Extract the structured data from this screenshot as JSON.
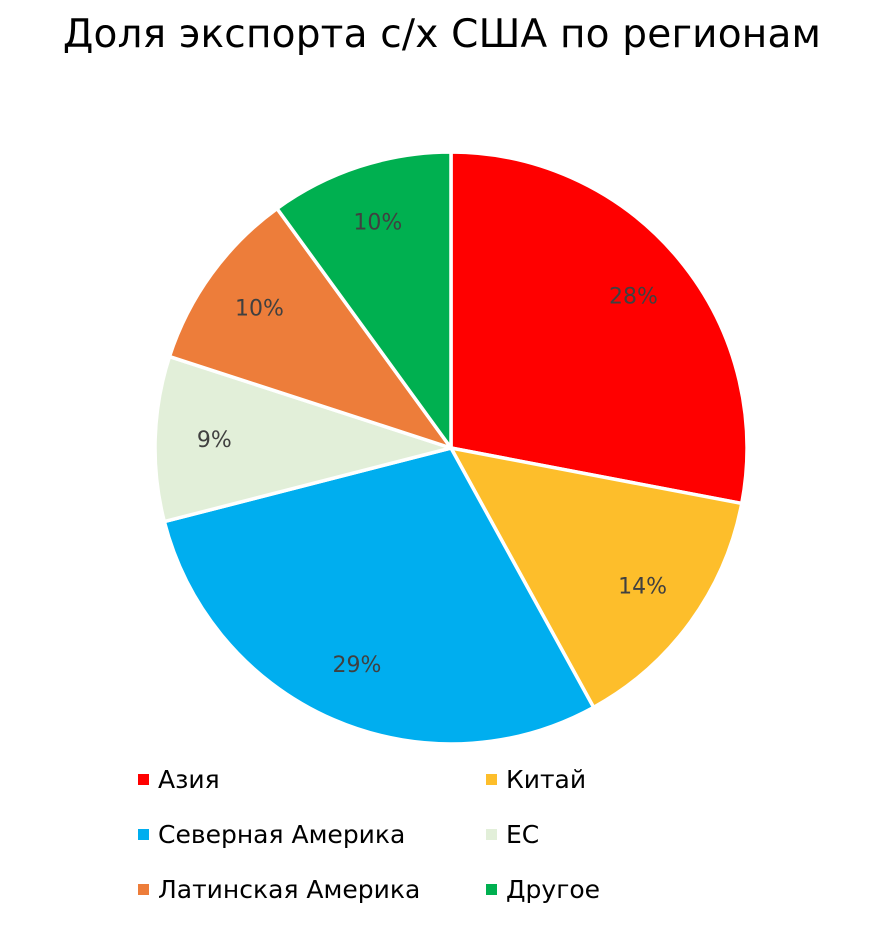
{
  "chart_data": {
    "type": "pie",
    "title": "Доля экспорта с/х США по регионам",
    "categories": [
      "Азия",
      "Китай",
      "Северная Америка",
      "ЕС",
      "Латинская Америка",
      "Другое"
    ],
    "values": [
      28,
      14,
      29,
      9,
      10,
      10
    ],
    "labels": [
      "28%",
      "14%",
      "29%",
      "9%",
      "10%",
      "10%"
    ],
    "colors": [
      "#FF0000",
      "#FDBE2B",
      "#00AEEF",
      "#E2EFD9",
      "#ED7D3A",
      "#00B050"
    ],
    "legend_position": "bottom"
  }
}
